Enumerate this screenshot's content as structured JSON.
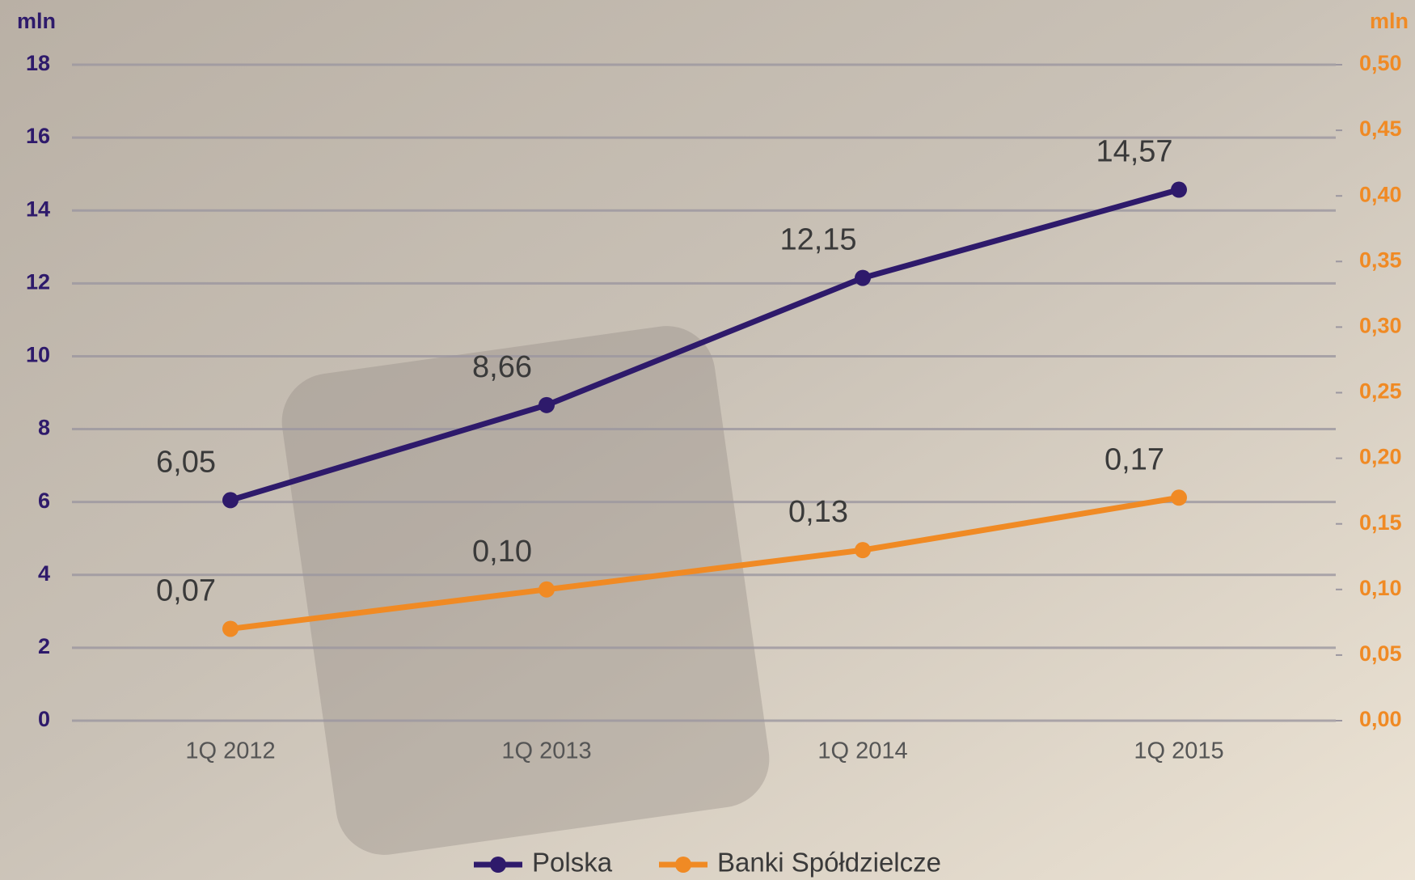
{
  "chart_data": {
    "type": "line",
    "y_label": "mln",
    "y2_label": "mln",
    "categories": [
      "1Q 2012",
      "1Q 2013",
      "1Q 2014",
      "1Q 2015"
    ],
    "series": [
      {
        "name": "Polska",
        "color": "#2e1a6b",
        "values": [
          6.05,
          8.66,
          12.15,
          14.57
        ],
        "value_labels": [
          "6,05",
          "8,66",
          "12,15",
          "14,57"
        ]
      },
      {
        "name": "Banki Spółdzielcze",
        "color": "#f08a24",
        "axis": "y2",
        "values": [
          0.07,
          0.1,
          0.13,
          0.17
        ],
        "value_labels": [
          "0,07",
          "0,10",
          "0,13",
          "0,17"
        ]
      }
    ],
    "ylim": [
      0,
      18
    ],
    "yticks": [
      0,
      2,
      4,
      6,
      8,
      10,
      12,
      14,
      16,
      18
    ],
    "y2lim": [
      0,
      0.5
    ],
    "y2ticks": [
      {
        "value": 0,
        "label": "0,00"
      },
      {
        "value": 0.05,
        "label": "0,05"
      },
      {
        "value": 0.1,
        "label": "0,10"
      },
      {
        "value": 0.15,
        "label": "0,15"
      },
      {
        "value": 0.2,
        "label": "0,20"
      },
      {
        "value": 0.25,
        "label": "0,25"
      },
      {
        "value": 0.3,
        "label": "0,30"
      },
      {
        "value": 0.35,
        "label": "0,35"
      },
      {
        "value": 0.4,
        "label": "0,40"
      },
      {
        "value": 0.45,
        "label": "0,45"
      },
      {
        "value": 0.5,
        "label": "0,50"
      }
    ],
    "grid": true
  }
}
